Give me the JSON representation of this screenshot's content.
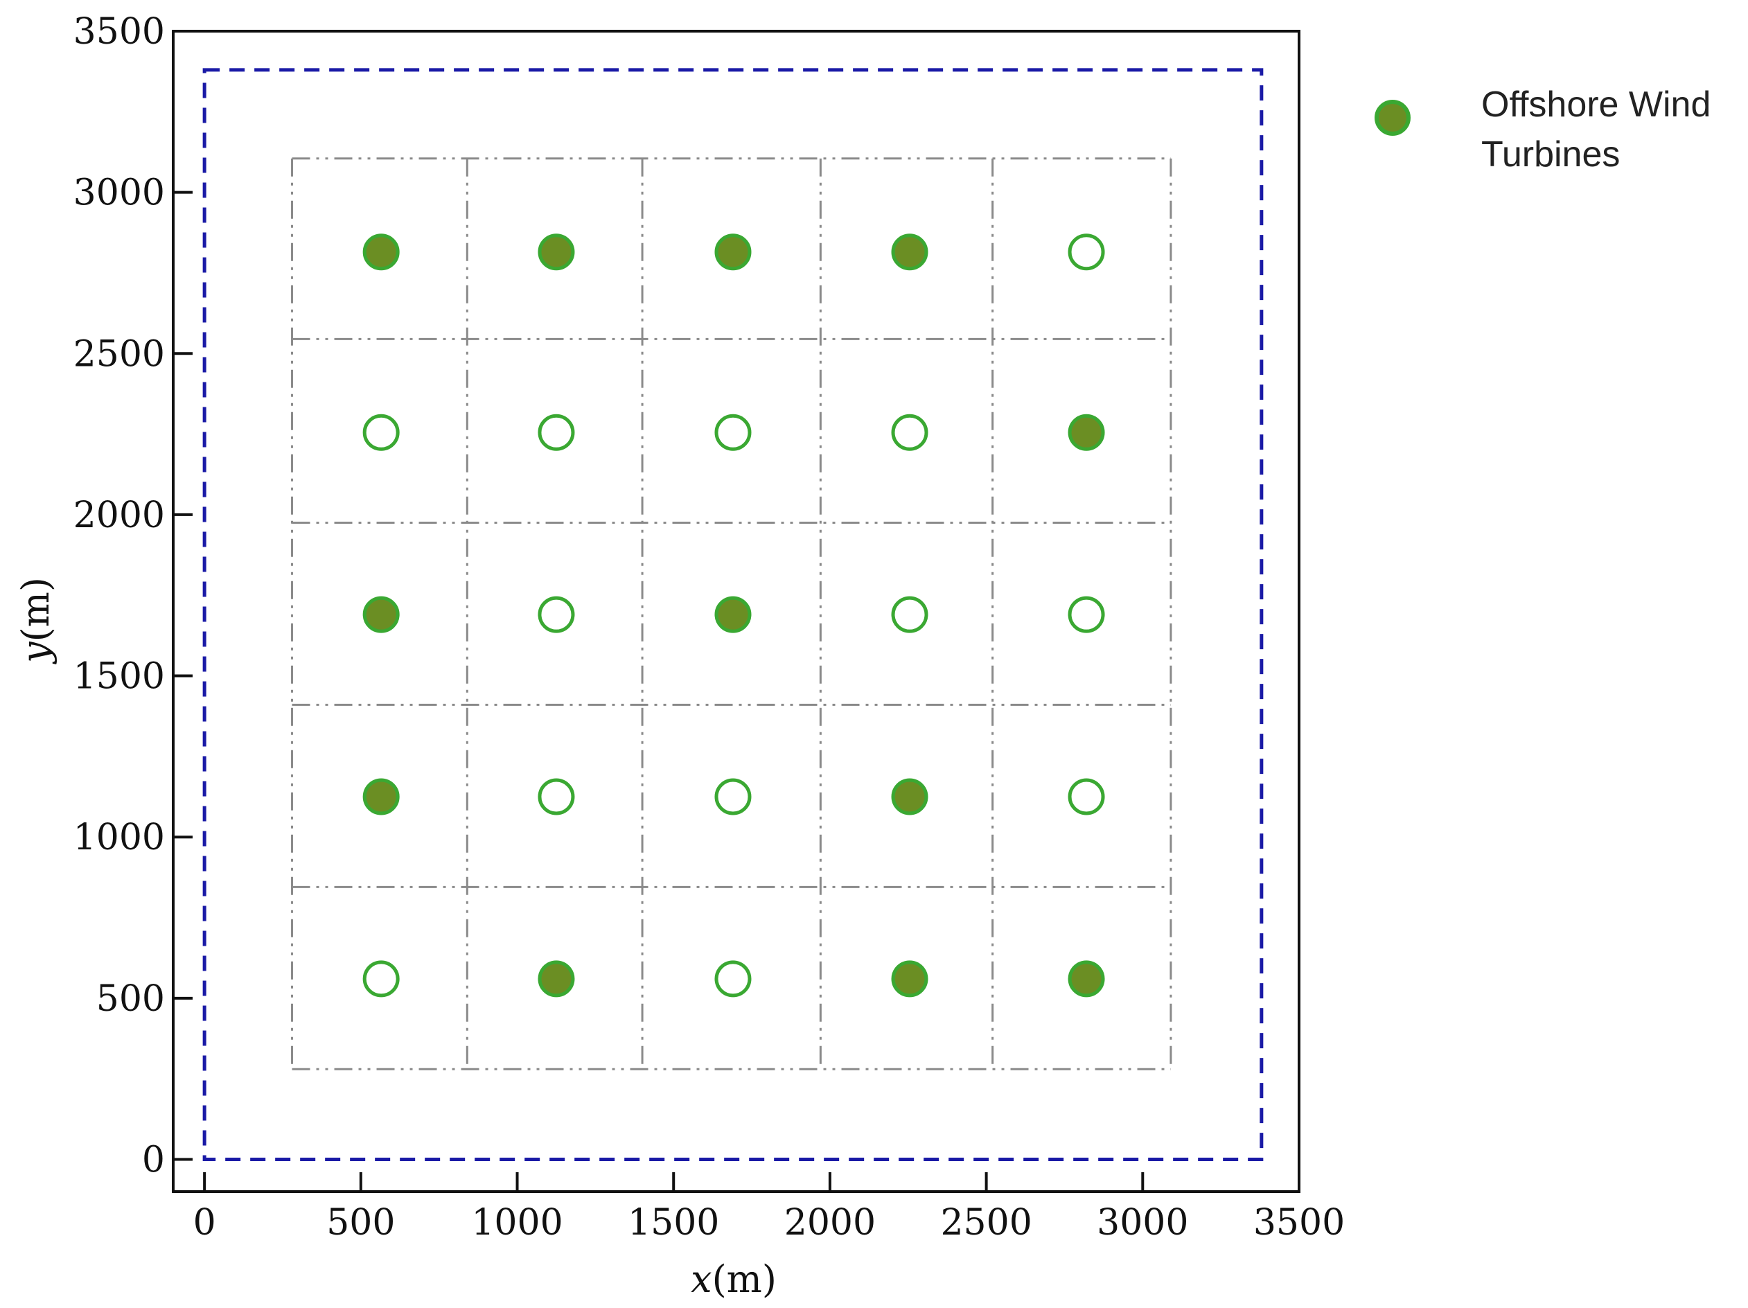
{
  "chart_data": {
    "type": "scatter",
    "xlabel_var": "x",
    "xlabel_unit": "(m)",
    "ylabel_var": "y",
    "ylabel_unit": "(m)",
    "xlim": [
      -100,
      3500
    ],
    "ylim": [
      -100,
      3500
    ],
    "xticks": [
      0,
      500,
      1000,
      1500,
      2000,
      2500,
      3000,
      3500
    ],
    "yticks": [
      0,
      500,
      1000,
      1500,
      2000,
      2500,
      3000,
      3500
    ],
    "xtick_labels": [
      "0",
      "500",
      "1000",
      "1500",
      "2000",
      "2500",
      "3000",
      "3500"
    ],
    "ytick_labels": [
      "0",
      "500",
      "1000",
      "1500",
      "2000",
      "2500",
      "3000",
      "3500"
    ],
    "boundary": {
      "x": [
        0,
        3380
      ],
      "y": [
        0,
        3380
      ],
      "color": "#1a1aa6",
      "style": "dashed"
    },
    "grid_cells": {
      "x_edges": [
        280,
        840,
        1400,
        1970,
        2520,
        3090
      ],
      "y_edges": [
        280,
        845,
        1410,
        1975,
        2545,
        3105
      ],
      "style": "dash-dot",
      "color": "#8a8a8a"
    },
    "marker_colors": {
      "installed_fill": "#6b8e23",
      "edge": "#3aa832"
    },
    "series": [
      {
        "name": "Offshore Wind Turbines",
        "filled": true,
        "x": [
          565,
          1125,
          1690,
          2255,
          2820,
          565,
          1690,
          565,
          2255,
          1125,
          2255,
          2820
        ],
        "y": [
          2815,
          2815,
          2815,
          2815,
          2255,
          1690,
          1690,
          1125,
          1125,
          560,
          560,
          560
        ]
      },
      {
        "filled": false,
        "x": [
          2820,
          565,
          1125,
          1690,
          2255,
          1125,
          2255,
          2820,
          1125,
          1690,
          2820,
          565,
          1690
        ],
        "y": [
          2815,
          2255,
          2255,
          2255,
          2255,
          1690,
          1690,
          1690,
          1125,
          1125,
          1125,
          560,
          560
        ]
      }
    ],
    "legend": {
      "position": "top-right, outside plot",
      "label_line1": "Offshore Wind",
      "label_line2": "Turbines"
    }
  }
}
